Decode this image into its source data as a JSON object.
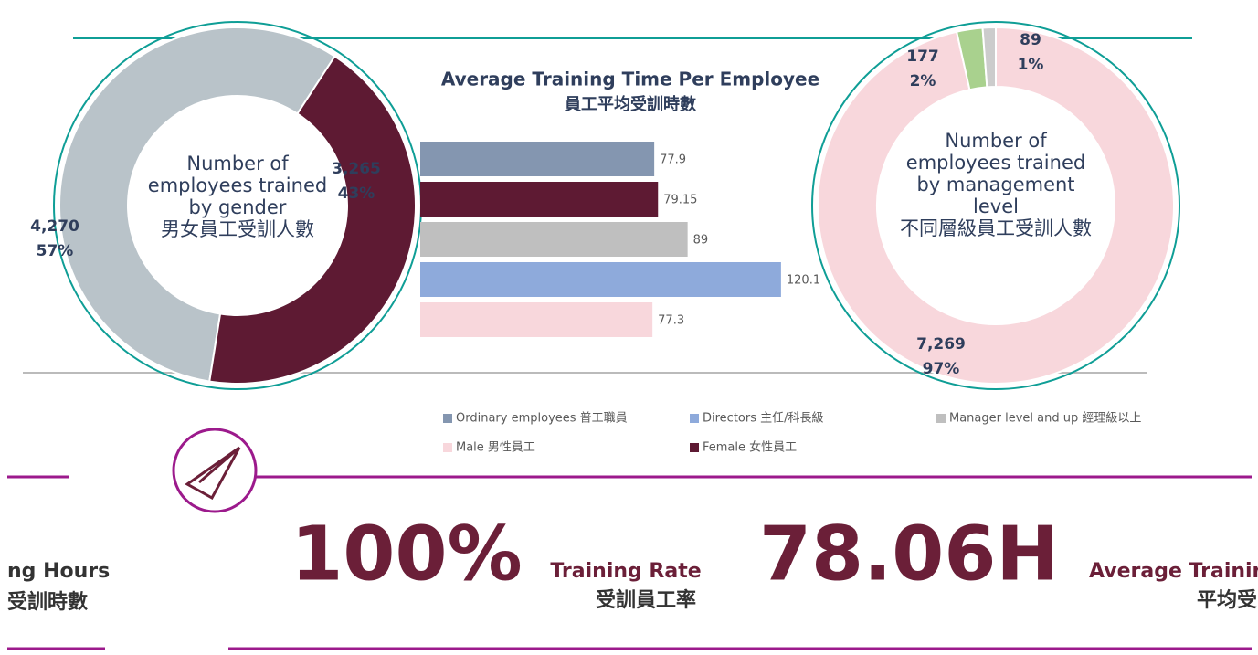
{
  "chart_data": [
    {
      "type": "donut",
      "title": [
        "Number of",
        "employees trained",
        "by gender",
        "男女員工受訓人數"
      ],
      "values": [
        4270,
        3265
      ],
      "value_labels": [
        "4,270",
        "3,265"
      ],
      "percent_labels": [
        "57%",
        "43%"
      ],
      "colors": [
        "#b9c3c9",
        "#5e1a33"
      ]
    },
    {
      "type": "hbar",
      "title": "Average Training Time Per Employee",
      "subtitle": "員工平均受訓時數",
      "xlim": [
        0,
        125
      ],
      "series": [
        {
          "name": "Ordinary employees 普工職員",
          "color": "#8496b0",
          "values": [
            77.9
          ]
        },
        {
          "name": "Female 女性員工",
          "color": "#5e1a33",
          "values": [
            79.15
          ]
        },
        {
          "name": "Manager level and up 經理級以上",
          "color": "#bfbfbf",
          "values": [
            89
          ]
        },
        {
          "name": "Directors 主任/科長級",
          "color": "#8eaadb",
          "values": [
            120.1
          ]
        },
        {
          "name": "Male 男性員工",
          "color": "#f8d7dc",
          "values": [
            77.3
          ]
        }
      ]
    },
    {
      "type": "donut",
      "title": [
        "Number of",
        "employees trained",
        "by management",
        "level",
        "不同層級員工受訓人數"
      ],
      "values": [
        7269,
        177,
        89
      ],
      "value_labels": [
        "7,269",
        "177",
        "89"
      ],
      "percent_labels": [
        "97%",
        "2%",
        "1%"
      ],
      "colors": [
        "#f8d7dc",
        "#a9d18e",
        "#cccccc"
      ]
    }
  ],
  "stats": {
    "left_caption": [
      "ng Hours",
      "受訓時數"
    ],
    "rate": "100%",
    "rate_caption": [
      "Training Rate",
      "受訓員工率"
    ],
    "hours": "78.06H",
    "hours_caption": [
      "Average Trainin",
      "平均受"
    ]
  }
}
